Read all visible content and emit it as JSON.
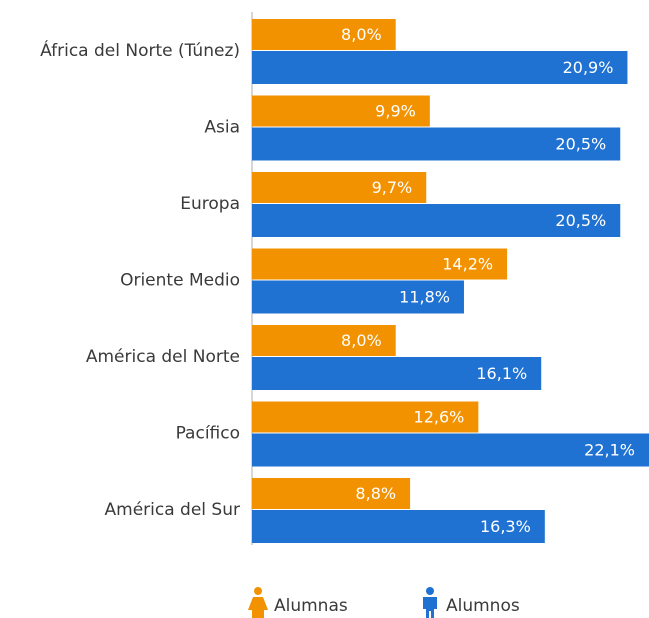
{
  "chart_data": {
    "type": "bar",
    "orientation": "horizontal",
    "categories": [
      "África del Norte (Túnez)",
      "Asia",
      "Europa",
      "Oriente Medio",
      "América del Norte",
      "Pacífico",
      "América del Sur"
    ],
    "series": [
      {
        "name": "Alumnas",
        "color": "#f39200",
        "values": [
          8.0,
          9.9,
          9.7,
          14.2,
          8.0,
          12.6,
          8.8
        ],
        "value_labels": [
          "8,0%",
          "9,9%",
          "9,7%",
          "14,2%",
          "8,0%",
          "12,6%",
          "8,8%"
        ]
      },
      {
        "name": "Alumnos",
        "color": "#1f72d2",
        "values": [
          20.9,
          20.5,
          20.5,
          11.8,
          16.1,
          22.1,
          16.3
        ],
        "value_labels": [
          "20,9%",
          "20,5%",
          "20,5%",
          "11,8%",
          "16,1%",
          "22,1%",
          "16,3%"
        ]
      }
    ]
  }
}
